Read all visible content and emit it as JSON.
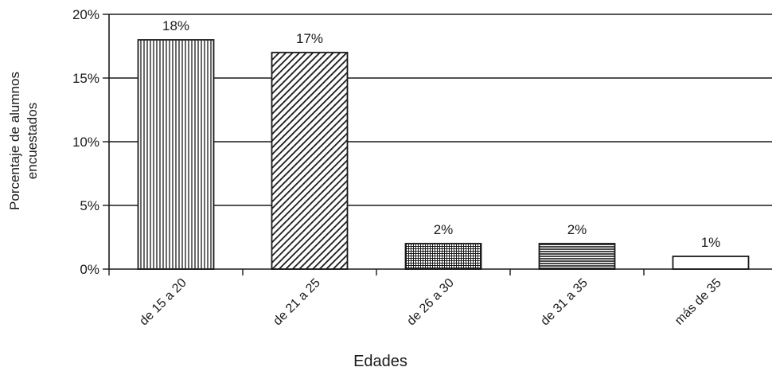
{
  "chart_data": {
    "type": "bar",
    "categories": [
      "de 15 a 20",
      "de 21 a 25",
      "de 26 a 30",
      "de 31 a 35",
      "más de 35"
    ],
    "values": [
      18,
      17,
      2,
      2,
      1
    ],
    "data_labels": [
      "18%",
      "17%",
      "2%",
      "2%",
      "1%"
    ],
    "patterns": [
      "vertical-lines",
      "diagonal-lines",
      "fine-grid",
      "horizontal-lines",
      "solid-white"
    ],
    "xlabel": "Edades",
    "ylabel_lines": [
      "Porcentaje de alumnos",
      "encuestados"
    ],
    "yticks": [
      0,
      5,
      10,
      15,
      20
    ],
    "ytick_labels": [
      "0%",
      "5%",
      "10%",
      "15%",
      "20%"
    ],
    "ylim": [
      0,
      20
    ],
    "grid": true,
    "colors": {
      "ink": "#1a1a1a",
      "bar_fill": "#ffffff",
      "background": "#ffffff"
    }
  }
}
